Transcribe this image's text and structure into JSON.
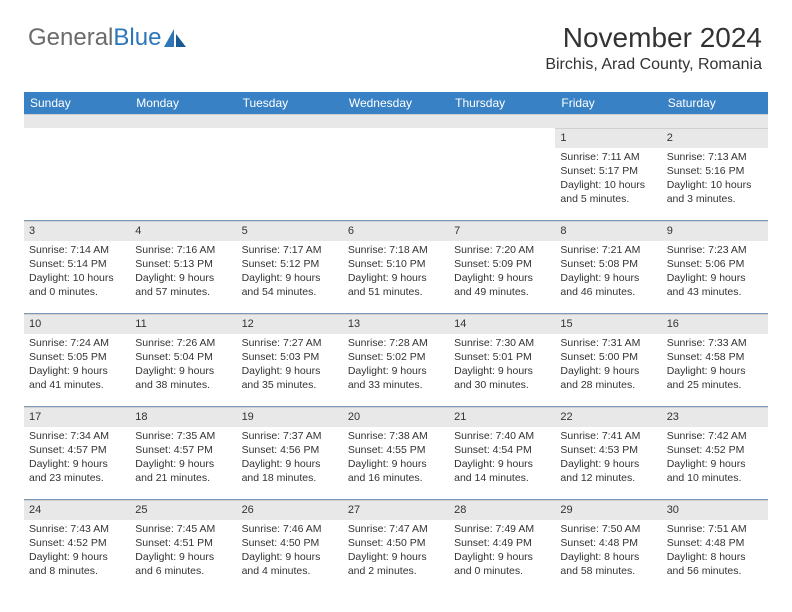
{
  "logo": {
    "part1": "General",
    "part2": "Blue"
  },
  "header": {
    "month": "November 2024",
    "location": "Birchis, Arad County, Romania"
  },
  "colors": {
    "header_bg": "#3981c5",
    "header_text": "#ffffff",
    "daynum_bg": "#e8e8e8",
    "text": "#333333",
    "grid_line": "#7a98b8",
    "logo_gray": "#6b6b6b",
    "logo_blue": "#2d76b8"
  },
  "day_names": [
    "Sunday",
    "Monday",
    "Tuesday",
    "Wednesday",
    "Thursday",
    "Friday",
    "Saturday"
  ],
  "weeks": [
    [
      {
        "n": "",
        "sr": "",
        "ss": "",
        "dl": ""
      },
      {
        "n": "",
        "sr": "",
        "ss": "",
        "dl": ""
      },
      {
        "n": "",
        "sr": "",
        "ss": "",
        "dl": ""
      },
      {
        "n": "",
        "sr": "",
        "ss": "",
        "dl": ""
      },
      {
        "n": "",
        "sr": "",
        "ss": "",
        "dl": ""
      },
      {
        "n": "1",
        "sr": "Sunrise: 7:11 AM",
        "ss": "Sunset: 5:17 PM",
        "dl": "Daylight: 10 hours and 5 minutes."
      },
      {
        "n": "2",
        "sr": "Sunrise: 7:13 AM",
        "ss": "Sunset: 5:16 PM",
        "dl": "Daylight: 10 hours and 3 minutes."
      }
    ],
    [
      {
        "n": "3",
        "sr": "Sunrise: 7:14 AM",
        "ss": "Sunset: 5:14 PM",
        "dl": "Daylight: 10 hours and 0 minutes."
      },
      {
        "n": "4",
        "sr": "Sunrise: 7:16 AM",
        "ss": "Sunset: 5:13 PM",
        "dl": "Daylight: 9 hours and 57 minutes."
      },
      {
        "n": "5",
        "sr": "Sunrise: 7:17 AM",
        "ss": "Sunset: 5:12 PM",
        "dl": "Daylight: 9 hours and 54 minutes."
      },
      {
        "n": "6",
        "sr": "Sunrise: 7:18 AM",
        "ss": "Sunset: 5:10 PM",
        "dl": "Daylight: 9 hours and 51 minutes."
      },
      {
        "n": "7",
        "sr": "Sunrise: 7:20 AM",
        "ss": "Sunset: 5:09 PM",
        "dl": "Daylight: 9 hours and 49 minutes."
      },
      {
        "n": "8",
        "sr": "Sunrise: 7:21 AM",
        "ss": "Sunset: 5:08 PM",
        "dl": "Daylight: 9 hours and 46 minutes."
      },
      {
        "n": "9",
        "sr": "Sunrise: 7:23 AM",
        "ss": "Sunset: 5:06 PM",
        "dl": "Daylight: 9 hours and 43 minutes."
      }
    ],
    [
      {
        "n": "10",
        "sr": "Sunrise: 7:24 AM",
        "ss": "Sunset: 5:05 PM",
        "dl": "Daylight: 9 hours and 41 minutes."
      },
      {
        "n": "11",
        "sr": "Sunrise: 7:26 AM",
        "ss": "Sunset: 5:04 PM",
        "dl": "Daylight: 9 hours and 38 minutes."
      },
      {
        "n": "12",
        "sr": "Sunrise: 7:27 AM",
        "ss": "Sunset: 5:03 PM",
        "dl": "Daylight: 9 hours and 35 minutes."
      },
      {
        "n": "13",
        "sr": "Sunrise: 7:28 AM",
        "ss": "Sunset: 5:02 PM",
        "dl": "Daylight: 9 hours and 33 minutes."
      },
      {
        "n": "14",
        "sr": "Sunrise: 7:30 AM",
        "ss": "Sunset: 5:01 PM",
        "dl": "Daylight: 9 hours and 30 minutes."
      },
      {
        "n": "15",
        "sr": "Sunrise: 7:31 AM",
        "ss": "Sunset: 5:00 PM",
        "dl": "Daylight: 9 hours and 28 minutes."
      },
      {
        "n": "16",
        "sr": "Sunrise: 7:33 AM",
        "ss": "Sunset: 4:58 PM",
        "dl": "Daylight: 9 hours and 25 minutes."
      }
    ],
    [
      {
        "n": "17",
        "sr": "Sunrise: 7:34 AM",
        "ss": "Sunset: 4:57 PM",
        "dl": "Daylight: 9 hours and 23 minutes."
      },
      {
        "n": "18",
        "sr": "Sunrise: 7:35 AM",
        "ss": "Sunset: 4:57 PM",
        "dl": "Daylight: 9 hours and 21 minutes."
      },
      {
        "n": "19",
        "sr": "Sunrise: 7:37 AM",
        "ss": "Sunset: 4:56 PM",
        "dl": "Daylight: 9 hours and 18 minutes."
      },
      {
        "n": "20",
        "sr": "Sunrise: 7:38 AM",
        "ss": "Sunset: 4:55 PM",
        "dl": "Daylight: 9 hours and 16 minutes."
      },
      {
        "n": "21",
        "sr": "Sunrise: 7:40 AM",
        "ss": "Sunset: 4:54 PM",
        "dl": "Daylight: 9 hours and 14 minutes."
      },
      {
        "n": "22",
        "sr": "Sunrise: 7:41 AM",
        "ss": "Sunset: 4:53 PM",
        "dl": "Daylight: 9 hours and 12 minutes."
      },
      {
        "n": "23",
        "sr": "Sunrise: 7:42 AM",
        "ss": "Sunset: 4:52 PM",
        "dl": "Daylight: 9 hours and 10 minutes."
      }
    ],
    [
      {
        "n": "24",
        "sr": "Sunrise: 7:43 AM",
        "ss": "Sunset: 4:52 PM",
        "dl": "Daylight: 9 hours and 8 minutes."
      },
      {
        "n": "25",
        "sr": "Sunrise: 7:45 AM",
        "ss": "Sunset: 4:51 PM",
        "dl": "Daylight: 9 hours and 6 minutes."
      },
      {
        "n": "26",
        "sr": "Sunrise: 7:46 AM",
        "ss": "Sunset: 4:50 PM",
        "dl": "Daylight: 9 hours and 4 minutes."
      },
      {
        "n": "27",
        "sr": "Sunrise: 7:47 AM",
        "ss": "Sunset: 4:50 PM",
        "dl": "Daylight: 9 hours and 2 minutes."
      },
      {
        "n": "28",
        "sr": "Sunrise: 7:49 AM",
        "ss": "Sunset: 4:49 PM",
        "dl": "Daylight: 9 hours and 0 minutes."
      },
      {
        "n": "29",
        "sr": "Sunrise: 7:50 AM",
        "ss": "Sunset: 4:48 PM",
        "dl": "Daylight: 8 hours and 58 minutes."
      },
      {
        "n": "30",
        "sr": "Sunrise: 7:51 AM",
        "ss": "Sunset: 4:48 PM",
        "dl": "Daylight: 8 hours and 56 minutes."
      }
    ]
  ]
}
